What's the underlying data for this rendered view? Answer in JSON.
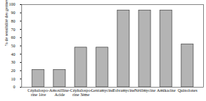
{
  "chart_data": {
    "type": "bar",
    "y_label": "% de sensibilité des germes",
    "categories": [
      "Céphalospo-\nrine 1ère",
      "Amoxilline-\nAcide",
      "Céphalospo-\nrine 3ème",
      "Gentamycine",
      "Tobramycine",
      "Nétilmycine",
      "Amikacine",
      "Quinolones"
    ],
    "values": [
      21,
      21,
      48,
      48,
      93,
      93,
      93,
      52
    ],
    "color": "#b4b4b4",
    "ylim": [
      0,
      100
    ],
    "yticks": [
      0,
      10,
      20,
      30,
      40,
      50,
      60,
      70,
      80,
      90,
      100
    ],
    "grid": false
  }
}
